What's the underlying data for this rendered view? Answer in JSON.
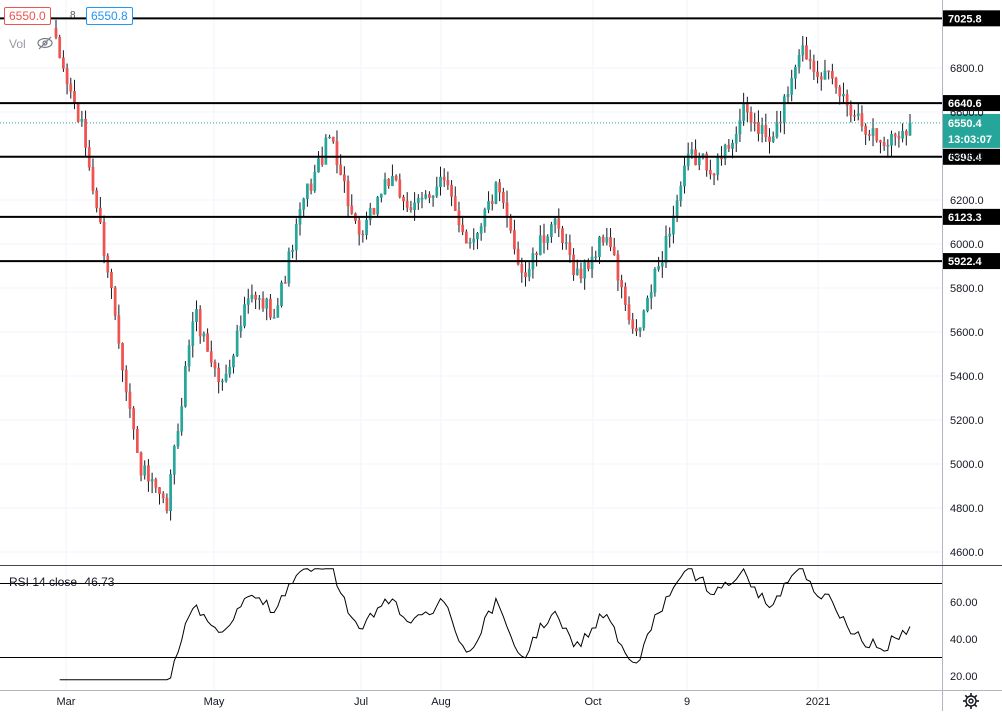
{
  "toolbar": {
    "sell_price": "6550.0",
    "spread": "8",
    "buy_price": "6550.8",
    "volume_label": "Vol",
    "eye_icon": "eye-off-icon"
  },
  "price_axis": {
    "ticks": [
      "6800.0",
      "6600.0",
      "6400.0",
      "6200.0",
      "6000.0",
      "5800.0",
      "5600.0",
      "5400.0",
      "5200.0",
      "5000.0",
      "4800.0",
      "4600.0"
    ],
    "current_price": "6550.4",
    "countdown": "13:03:07"
  },
  "levels": [
    {
      "label": "7025.8",
      "value": 7025.8
    },
    {
      "label": "6640.6",
      "value": 6640.6
    },
    {
      "label": "6396.4",
      "value": 6396.4
    },
    {
      "label": "6123.3",
      "value": 6123.3
    },
    {
      "label": "5922.4",
      "value": 5922.4
    }
  ],
  "rsi": {
    "label": "RSI 14 close",
    "value": "46.73",
    "ticks": [
      "60.00",
      "40.00",
      "20.00"
    ],
    "upper": 70,
    "lower": 30
  },
  "time_axis": [
    "Mar",
    "May",
    "Jul",
    "Aug",
    "Oct",
    "9",
    "2021"
  ],
  "settings_icon": "gear-icon",
  "colors": {
    "up": "#26a69a",
    "down": "#ef5350",
    "level": "#000000",
    "rsi_line": "#000000",
    "current_price": "#26a69a"
  },
  "chart_data": {
    "type": "candlestick",
    "title": "",
    "y_range": [
      4500,
      7070
    ],
    "keyframes": [
      {
        "date": "Feb",
        "close": 6900
      },
      {
        "date": "Mar",
        "close": 6500
      },
      {
        "date": "Mar",
        "close": 5800
      },
      {
        "date": "Mar",
        "close": 5000
      },
      {
        "date": "Mar",
        "close": 4780
      },
      {
        "date": "Apr",
        "close": 5700
      },
      {
        "date": "Apr",
        "close": 5350
      },
      {
        "date": "May",
        "close": 5750
      },
      {
        "date": "May",
        "close": 5700
      },
      {
        "date": "Jun",
        "close": 6200
      },
      {
        "date": "Jun",
        "close": 6500
      },
      {
        "date": "Jun",
        "close": 6000
      },
      {
        "date": "Jul",
        "close": 6300
      },
      {
        "date": "Jul",
        "close": 6150
      },
      {
        "date": "Aug",
        "close": 6300
      },
      {
        "date": "Aug",
        "close": 6000
      },
      {
        "date": "Aug",
        "close": 6250
      },
      {
        "date": "Sep",
        "close": 5850
      },
      {
        "date": "Sep",
        "close": 6100
      },
      {
        "date": "Oct",
        "close": 5850
      },
      {
        "date": "Oct",
        "close": 6050
      },
      {
        "date": "Oct",
        "close": 5550
      },
      {
        "date": "Nov",
        "close": 5950
      },
      {
        "date": "Nov",
        "close": 6400
      },
      {
        "date": "Dec",
        "close": 6350
      },
      {
        "date": "Dec",
        "close": 6600
      },
      {
        "date": "Dec",
        "close": 6450
      },
      {
        "date": "Jan",
        "close": 6900
      },
      {
        "date": "Jan",
        "close": 6750
      },
      {
        "date": "Jan",
        "close": 6600
      },
      {
        "date": "Feb",
        "close": 6450
      },
      {
        "date": "Feb",
        "close": 6550
      }
    ],
    "levels": [
      7025.8,
      6640.6,
      6396.4,
      6123.3,
      5922.4
    ],
    "last_price": 6550.4,
    "rsi_last": 46.73
  }
}
